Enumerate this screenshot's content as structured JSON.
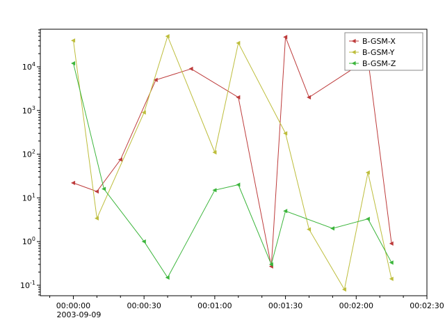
{
  "figure": {
    "background": "#ffffff",
    "frame_color": "#000000"
  },
  "axes": {
    "x": {
      "tick_labels": [
        "00:00:00",
        "00:00:30",
        "00:01:00",
        "00:01:30",
        "00:02:00",
        "00:02:30"
      ],
      "tick_seconds": [
        0,
        30,
        60,
        90,
        120,
        150
      ],
      "minor_step_seconds": 10,
      "date_label": "2003-09-09",
      "domain_seconds": [
        -14,
        150
      ]
    },
    "y": {
      "scale": "log",
      "tick_base": "10",
      "tick_exponents": [
        -1,
        0,
        1,
        2,
        3,
        4
      ],
      "domain_log10": [
        -1.24,
        4.86
      ]
    }
  },
  "legend": {
    "border_color": "#8a8a8a",
    "items": [
      {
        "label": "B-GSM-X",
        "color": "#bd3b3b"
      },
      {
        "label": "B-GSM-Y",
        "color": "#bdbd3b"
      },
      {
        "label": "B-GSM-Z",
        "color": "#3bb53b"
      }
    ]
  },
  "chart_data": {
    "type": "line",
    "title": "",
    "xlabel": "2003-09-09",
    "ylabel": "",
    "x_unit": "seconds after 00:00:00 on 2003-09-09",
    "y_scale": "log",
    "ylim": [
      0.058,
      72000
    ],
    "x_tick_labels": [
      "00:00:00",
      "00:00:30",
      "00:01:00",
      "00:01:30",
      "00:02:00",
      "00:02:30"
    ],
    "legend_position": "upper right",
    "grid": false,
    "series": [
      {
        "name": "B-GSM-X",
        "color": "#bd3b3b",
        "points": [
          [
            0,
            22
          ],
          [
            10,
            14
          ],
          [
            20,
            75
          ],
          [
            35,
            5000
          ],
          [
            50,
            9000
          ],
          [
            70,
            2000
          ],
          [
            84,
            0.27
          ],
          [
            90,
            48000
          ],
          [
            100,
            2000
          ],
          [
            125,
            15000
          ],
          [
            135,
            0.9
          ]
        ]
      },
      {
        "name": "B-GSM-Y",
        "color": "#bdbd3b",
        "points": [
          [
            0,
            40000
          ],
          [
            10,
            3.4
          ],
          [
            30,
            900
          ],
          [
            40,
            50000
          ],
          [
            60,
            110
          ],
          [
            70,
            35000
          ],
          [
            90,
            300
          ],
          [
            100,
            1.9
          ],
          [
            115,
            0.08
          ],
          [
            125,
            38
          ],
          [
            135,
            0.14
          ]
        ]
      },
      {
        "name": "B-GSM-Z",
        "color": "#3bb53b",
        "points": [
          [
            0,
            12000
          ],
          [
            13,
            16
          ],
          [
            30,
            1.0
          ],
          [
            40,
            0.15
          ],
          [
            60,
            15
          ],
          [
            70,
            20
          ],
          [
            84,
            0.3
          ],
          [
            90,
            5
          ],
          [
            110,
            2
          ],
          [
            125,
            3.3
          ],
          [
            135,
            0.33
          ]
        ]
      }
    ]
  }
}
